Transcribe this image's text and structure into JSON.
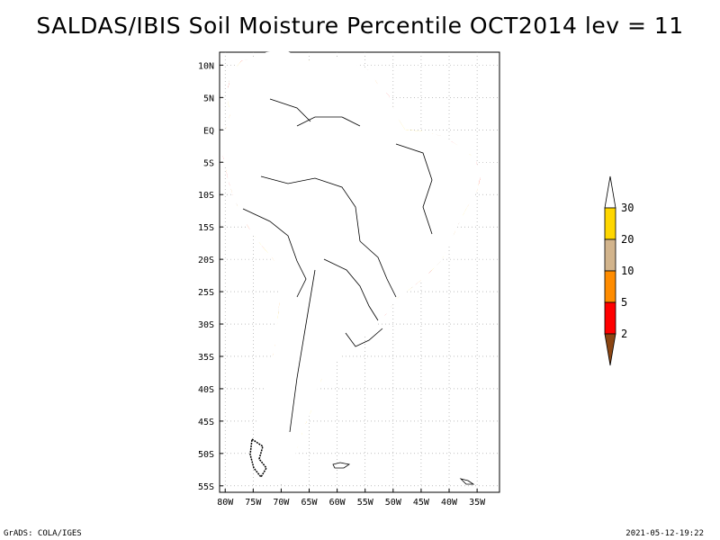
{
  "title": "SALDAS/IBIS Soil Moisture Percentile OCT2014 lev = 11",
  "footer": {
    "credit": "GrADS: COLA/IGES",
    "timestamp": "2021-05-12-19:22"
  },
  "map": {
    "region": "South America",
    "lon_range": [
      -81,
      -31
    ],
    "lat_range": [
      -56,
      12
    ],
    "lon_ticks": [
      {
        "value": -80,
        "label": "80W"
      },
      {
        "value": -75,
        "label": "75W"
      },
      {
        "value": -70,
        "label": "70W"
      },
      {
        "value": -65,
        "label": "65W"
      },
      {
        "value": -60,
        "label": "60W"
      },
      {
        "value": -55,
        "label": "55W"
      },
      {
        "value": -50,
        "label": "50W"
      },
      {
        "value": -45,
        "label": "45W"
      },
      {
        "value": -40,
        "label": "40W"
      },
      {
        "value": -35,
        "label": "35W"
      }
    ],
    "lat_ticks": [
      {
        "value": 10,
        "label": "10N"
      },
      {
        "value": 5,
        "label": "5N"
      },
      {
        "value": 0,
        "label": "EQ"
      },
      {
        "value": -5,
        "label": "5S"
      },
      {
        "value": -10,
        "label": "10S"
      },
      {
        "value": -15,
        "label": "15S"
      },
      {
        "value": -20,
        "label": "20S"
      },
      {
        "value": -25,
        "label": "25S"
      },
      {
        "value": -30,
        "label": "30S"
      },
      {
        "value": -35,
        "label": "35S"
      },
      {
        "value": -40,
        "label": "40S"
      },
      {
        "value": -45,
        "label": "45S"
      },
      {
        "value": -50,
        "label": "50S"
      },
      {
        "value": -55,
        "label": "55S"
      }
    ]
  },
  "legend": {
    "bins": [
      {
        "range": "<2",
        "color": "#8b4513"
      },
      {
        "range": "2-5",
        "color": "#ff0000"
      },
      {
        "range": "5-10",
        "color": "#ff8c00"
      },
      {
        "range": "10-20",
        "color": "#d2b48c"
      },
      {
        "range": "20-30",
        "color": "#ffd700"
      },
      {
        "range": ">30",
        "color": "#ffffff"
      }
    ],
    "labels": [
      "2",
      "5",
      "10",
      "20",
      "30"
    ]
  },
  "colors": {
    "brown": "#8b4513",
    "red": "#ff0000",
    "orange": "#ff8c00",
    "tan": "#d2b48c",
    "gold": "#ffd700"
  }
}
